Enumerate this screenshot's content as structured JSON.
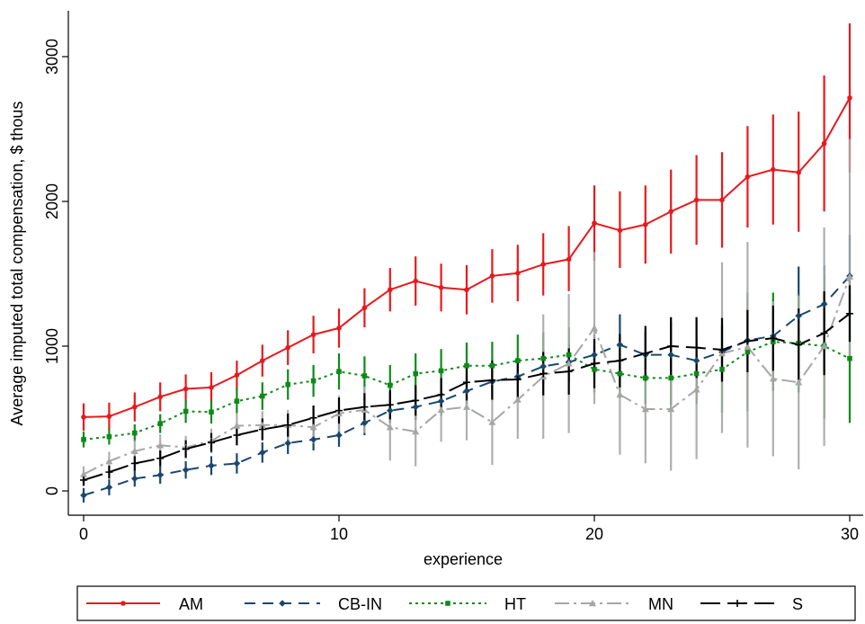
{
  "chart_data": {
    "type": "line",
    "xlabel": "experience",
    "ylabel": "Average imputed total compensation, $ thous",
    "xlim": [
      0,
      30
    ],
    "ylim": [
      -100,
      3300
    ],
    "x_ticks": [
      0,
      10,
      20,
      30
    ],
    "y_ticks": [
      0,
      1000,
      2000,
      3000
    ],
    "grid": false,
    "legend_position": "bottom",
    "x": [
      0,
      1,
      2,
      3,
      4,
      5,
      6,
      7,
      8,
      9,
      10,
      11,
      12,
      13,
      14,
      15,
      16,
      17,
      18,
      19,
      20,
      21,
      22,
      23,
      24,
      25,
      26,
      27,
      28,
      29,
      30
    ],
    "series": [
      {
        "name": "AM",
        "color": "#e8191c",
        "dash": "",
        "marker": "circle",
        "values": [
          510,
          515,
          580,
          650,
          705,
          715,
          800,
          900,
          990,
          1080,
          1125,
          1265,
          1390,
          1450,
          1405,
          1390,
          1485,
          1505,
          1565,
          1600,
          1850,
          1800,
          1840,
          1930,
          2010,
          2010,
          2170,
          2220,
          2200,
          2400,
          2715
        ],
        "lower": [
          415,
          420,
          480,
          550,
          605,
          610,
          700,
          790,
          870,
          950,
          990,
          1130,
          1240,
          1280,
          1240,
          1220,
          1300,
          1310,
          1350,
          1380,
          1590,
          1540,
          1570,
          1640,
          1700,
          1680,
          1820,
          1840,
          1790,
          1930,
          2200
        ],
        "upper": [
          605,
          610,
          680,
          750,
          805,
          820,
          900,
          1010,
          1110,
          1210,
          1260,
          1400,
          1540,
          1620,
          1570,
          1560,
          1670,
          1700,
          1780,
          1830,
          2110,
          2070,
          2110,
          2220,
          2320,
          2340,
          2520,
          2600,
          2620,
          2870,
          3230
        ]
      },
      {
        "name": "CB-IN",
        "color": "#1a476f",
        "dash": "12,8",
        "marker": "diamond",
        "values": [
          -30,
          25,
          85,
          110,
          145,
          175,
          190,
          265,
          330,
          355,
          385,
          470,
          555,
          580,
          620,
          690,
          755,
          790,
          860,
          890,
          940,
          1010,
          940,
          940,
          900,
          960,
          1040,
          1070,
          1210,
          1290,
          1485
        ],
        "lower": [
          -80,
          -30,
          30,
          50,
          85,
          110,
          120,
          195,
          255,
          280,
          305,
          385,
          470,
          490,
          520,
          590,
          650,
          680,
          745,
          765,
          800,
          830,
          780,
          780,
          740,
          770,
          860,
          880,
          980,
          1040,
          1200
        ],
        "upper": [
          20,
          80,
          140,
          170,
          205,
          240,
          260,
          335,
          405,
          430,
          465,
          555,
          640,
          670,
          720,
          790,
          860,
          900,
          975,
          1015,
          1080,
          1220,
          1100,
          1170,
          1060,
          1150,
          1220,
          1260,
          1550,
          1560,
          1770
        ]
      },
      {
        "name": "HT",
        "color": "#0f8a1a",
        "dash": "3,4",
        "marker": "square",
        "values": [
          355,
          375,
          400,
          465,
          550,
          545,
          620,
          655,
          735,
          760,
          825,
          795,
          730,
          810,
          830,
          865,
          865,
          900,
          915,
          940,
          840,
          810,
          780,
          780,
          810,
          840,
          960,
          1030,
          1020,
          1000,
          915
        ],
        "lower": [
          300,
          320,
          340,
          400,
          470,
          465,
          530,
          560,
          630,
          650,
          700,
          660,
          590,
          670,
          680,
          705,
          700,
          720,
          735,
          750,
          680,
          640,
          600,
          590,
          600,
          540,
          550,
          690,
          680,
          500,
          470
        ],
        "upper": [
          410,
          430,
          460,
          530,
          630,
          625,
          710,
          750,
          840,
          870,
          950,
          930,
          870,
          950,
          980,
          1025,
          1030,
          1080,
          1095,
          1130,
          1000,
          980,
          960,
          970,
          1020,
          1140,
          1370,
          1370,
          1360,
          1500,
          1360
        ]
      },
      {
        "name": "MN",
        "color": "#a6a6a6",
        "dash": "16,5,3,5",
        "marker": "triangle",
        "values": [
          115,
          205,
          275,
          315,
          300,
          345,
          450,
          455,
          455,
          440,
          535,
          560,
          440,
          410,
          560,
          580,
          475,
          630,
          790,
          880,
          1125,
          665,
          565,
          565,
          700,
          950,
          995,
          775,
          750,
          1000,
          1480
        ],
        "lower": [
          60,
          140,
          200,
          240,
          220,
          260,
          360,
          360,
          350,
          330,
          410,
          400,
          210,
          170,
          340,
          350,
          180,
          360,
          360,
          400,
          600,
          250,
          190,
          140,
          220,
          400,
          300,
          240,
          150,
          310,
          920
        ],
        "upper": [
          170,
          270,
          350,
          390,
          380,
          430,
          540,
          550,
          560,
          550,
          660,
          720,
          670,
          650,
          780,
          810,
          770,
          900,
          1220,
          1360,
          1650,
          1080,
          940,
          990,
          1180,
          1580,
          1720,
          1310,
          1350,
          1820,
          2430
        ]
      },
      {
        "name": "S",
        "color": "#000000",
        "dash": "22,8",
        "marker": "plus",
        "values": [
          75,
          130,
          190,
          225,
          290,
          335,
          385,
          425,
          455,
          505,
          555,
          580,
          595,
          625,
          665,
          750,
          765,
          770,
          810,
          825,
          880,
          900,
          950,
          1000,
          990,
          975,
          1035,
          1055,
          1010,
          1090,
          1225
        ],
        "lower": [
          35,
          85,
          140,
          170,
          230,
          270,
          315,
          350,
          375,
          420,
          465,
          485,
          495,
          520,
          550,
          625,
          630,
          630,
          660,
          665,
          710,
          715,
          760,
          800,
          780,
          755,
          820,
          830,
          760,
          800,
          1030
        ],
        "upper": [
          115,
          175,
          240,
          280,
          350,
          400,
          455,
          500,
          535,
          590,
          645,
          675,
          695,
          730,
          780,
          875,
          900,
          910,
          960,
          985,
          1050,
          1085,
          1140,
          1200,
          1200,
          1195,
          1250,
          1280,
          1260,
          1380,
          1420
        ]
      }
    ]
  }
}
